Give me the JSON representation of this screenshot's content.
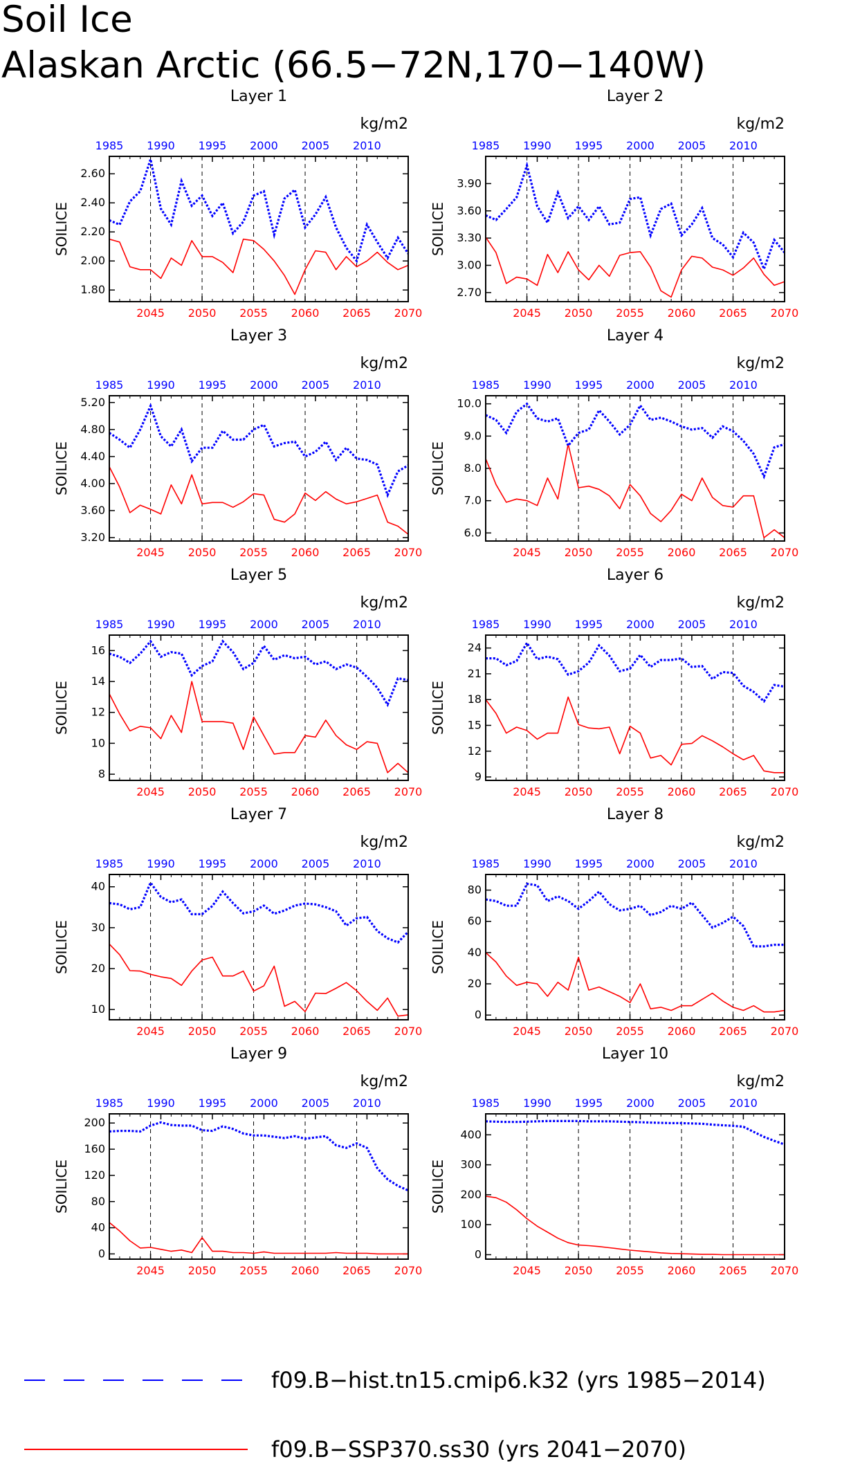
{
  "title_line1": "Soil Ice",
  "title_line2": "Alaskan Arctic (66.5−72N,170−140W)",
  "colors": {
    "hist": "#0000ff",
    "future": "#ff0000",
    "axis": "#000000"
  },
  "legend": [
    {
      "label": "f09.B−hist.tn15.cmip6.k32 (yrs 1985−2014)",
      "color": "#0000ff",
      "style": "dashed"
    },
    {
      "label": "f09.B−SSP370.ss30 (yrs 2041−2070)",
      "color": "#ff0000",
      "style": "solid"
    }
  ],
  "chart_data": [
    {
      "type": "line",
      "title": "Layer 1",
      "units": "kg/m2",
      "ylabel": "SOILICE",
      "top_ticks": [
        "1985",
        "1990",
        "1995",
        "2000",
        "2005",
        "2010"
      ],
      "bottom_ticks": [
        "2045",
        "2050",
        "2055",
        "2060",
        "2065",
        "2070"
      ],
      "ylim": [
        1.72,
        2.72
      ],
      "yticks": [
        1.8,
        2.0,
        2.2,
        2.4,
        2.6
      ],
      "ytick_labels": [
        "1.80",
        "2.00",
        "2.20",
        "2.40",
        "2.60"
      ],
      "series": [
        {
          "values": [
            2.28,
            2.25,
            2.41,
            2.48,
            2.7,
            2.36,
            2.25,
            2.55,
            2.38,
            2.45,
            2.31,
            2.4,
            2.19,
            2.27,
            2.45,
            2.48,
            2.18,
            2.43,
            2.49,
            2.23,
            2.32,
            2.44,
            2.23,
            2.09,
            2.0,
            2.25,
            2.13,
            2.02,
            2.16,
            2.05
          ]
        },
        {
          "values": [
            2.15,
            2.13,
            1.96,
            1.94,
            1.94,
            1.88,
            2.02,
            1.97,
            2.14,
            2.03,
            2.03,
            1.99,
            1.92,
            2.15,
            2.14,
            2.08,
            2.0,
            1.9,
            1.77,
            1.94,
            2.07,
            2.06,
            1.94,
            2.03,
            1.96,
            2.0,
            2.06,
            1.99,
            1.94,
            1.97
          ]
        }
      ]
    },
    {
      "type": "line",
      "title": "Layer 2",
      "units": "kg/m2",
      "ylabel": "SOILICE",
      "top_ticks": [
        "1985",
        "1990",
        "1995",
        "2000",
        "2005",
        "2010"
      ],
      "bottom_ticks": [
        "2045",
        "2050",
        "2055",
        "2060",
        "2065",
        "2070"
      ],
      "ylim": [
        2.6,
        4.2
      ],
      "yticks": [
        2.7,
        3.0,
        3.3,
        3.6,
        3.9
      ],
      "ytick_labels": [
        "2.70",
        "3.00",
        "3.30",
        "3.60",
        "3.90"
      ],
      "series": [
        {
          "values": [
            3.55,
            3.5,
            3.62,
            3.75,
            4.1,
            3.65,
            3.47,
            3.8,
            3.52,
            3.65,
            3.5,
            3.65,
            3.45,
            3.47,
            3.73,
            3.75,
            3.33,
            3.62,
            3.68,
            3.33,
            3.45,
            3.63,
            3.3,
            3.23,
            3.09,
            3.36,
            3.25,
            2.96,
            3.28,
            3.14
          ]
        },
        {
          "values": [
            3.31,
            3.14,
            2.8,
            2.87,
            2.85,
            2.78,
            3.12,
            2.92,
            3.15,
            2.95,
            2.84,
            3.0,
            2.88,
            3.11,
            3.14,
            3.15,
            2.98,
            2.72,
            2.65,
            2.95,
            3.1,
            3.08,
            2.98,
            2.95,
            2.89,
            2.97,
            3.08,
            2.9,
            2.78,
            2.82
          ]
        }
      ]
    },
    {
      "type": "line",
      "title": "Layer 3",
      "units": "kg/m2",
      "ylabel": "SOILICE",
      "top_ticks": [
        "1985",
        "1990",
        "1995",
        "2000",
        "2005",
        "2010"
      ],
      "bottom_ticks": [
        "2045",
        "2050",
        "2055",
        "2060",
        "2065",
        "2070"
      ],
      "ylim": [
        3.15,
        5.3
      ],
      "yticks": [
        3.2,
        3.6,
        4.0,
        4.4,
        4.8,
        5.2
      ],
      "ytick_labels": [
        "3.20",
        "3.60",
        "4.00",
        "4.40",
        "4.80",
        "5.20"
      ],
      "series": [
        {
          "values": [
            4.75,
            4.65,
            4.53,
            4.8,
            5.15,
            4.7,
            4.55,
            4.8,
            4.33,
            4.53,
            4.53,
            4.78,
            4.65,
            4.65,
            4.8,
            4.87,
            4.55,
            4.6,
            4.62,
            4.4,
            4.47,
            4.62,
            4.35,
            4.53,
            4.37,
            4.35,
            4.28,
            3.83,
            4.18,
            4.27
          ]
        },
        {
          "values": [
            4.25,
            3.95,
            3.57,
            3.68,
            3.62,
            3.55,
            3.98,
            3.7,
            4.13,
            3.7,
            3.72,
            3.72,
            3.65,
            3.73,
            3.85,
            3.83,
            3.47,
            3.43,
            3.55,
            3.86,
            3.75,
            3.88,
            3.77,
            3.7,
            3.73,
            3.78,
            3.83,
            3.43,
            3.37,
            3.25
          ]
        }
      ]
    },
    {
      "type": "line",
      "title": "Layer 4",
      "units": "kg/m2",
      "ylabel": "SOILICE",
      "top_ticks": [
        "1985",
        "1990",
        "1995",
        "2000",
        "2005",
        "2010"
      ],
      "bottom_ticks": [
        "2045",
        "2050",
        "2055",
        "2060",
        "2065",
        "2070"
      ],
      "ylim": [
        5.75,
        10.25
      ],
      "yticks": [
        6.0,
        7.0,
        8.0,
        9.0,
        10.0
      ],
      "ytick_labels": [
        "6.0",
        "7.0",
        "8.0",
        "9.0",
        "10.0"
      ],
      "series": [
        {
          "values": [
            9.65,
            9.5,
            9.1,
            9.75,
            10.0,
            9.55,
            9.45,
            9.55,
            8.7,
            9.1,
            9.2,
            9.8,
            9.45,
            9.05,
            9.35,
            9.95,
            9.5,
            9.57,
            9.45,
            9.3,
            9.2,
            9.25,
            8.95,
            9.3,
            9.15,
            8.85,
            8.45,
            7.75,
            8.65,
            8.75
          ]
        },
        {
          "values": [
            8.3,
            7.5,
            6.95,
            7.05,
            7.0,
            6.85,
            7.7,
            7.05,
            8.75,
            7.4,
            7.45,
            7.35,
            7.15,
            6.75,
            7.5,
            7.15,
            6.6,
            6.35,
            6.7,
            7.2,
            7.0,
            7.7,
            7.1,
            6.85,
            6.8,
            7.15,
            7.15,
            5.85,
            6.1,
            5.85
          ]
        }
      ]
    },
    {
      "type": "line",
      "title": "Layer 5",
      "units": "kg/m2",
      "ylabel": "SOILICE",
      "top_ticks": [
        "1985",
        "1990",
        "1995",
        "2000",
        "2005",
        "2010"
      ],
      "bottom_ticks": [
        "2045",
        "2050",
        "2055",
        "2060",
        "2065",
        "2070"
      ],
      "ylim": [
        7.6,
        17.0
      ],
      "yticks": [
        8,
        10,
        12,
        14,
        16
      ],
      "ytick_labels": [
        "8",
        "10",
        "12",
        "14",
        "16"
      ],
      "series": [
        {
          "values": [
            15.8,
            15.6,
            15.2,
            15.8,
            16.6,
            15.6,
            15.9,
            15.8,
            14.4,
            15.0,
            15.3,
            16.6,
            15.9,
            14.8,
            15.2,
            16.3,
            15.4,
            15.7,
            15.5,
            15.6,
            15.1,
            15.3,
            14.8,
            15.1,
            14.9,
            14.3,
            13.6,
            12.5,
            14.2,
            14.1
          ]
        },
        {
          "values": [
            13.2,
            11.9,
            10.8,
            11.1,
            11.0,
            10.3,
            11.8,
            10.7,
            14.0,
            11.4,
            11.4,
            11.4,
            11.3,
            9.6,
            11.7,
            10.5,
            9.3,
            9.4,
            9.4,
            10.5,
            10.4,
            11.5,
            10.5,
            9.9,
            9.6,
            10.1,
            10.0,
            8.1,
            8.7,
            8.1
          ]
        }
      ]
    },
    {
      "type": "line",
      "title": "Layer 6",
      "units": "kg/m2",
      "ylabel": "SOILICE",
      "top_ticks": [
        "1985",
        "1990",
        "1995",
        "2000",
        "2005",
        "2010"
      ],
      "bottom_ticks": [
        "2045",
        "2050",
        "2055",
        "2060",
        "2065",
        "2070"
      ],
      "ylim": [
        8.6,
        25.5
      ],
      "yticks": [
        9,
        12,
        15,
        18,
        21,
        24
      ],
      "ytick_labels": [
        "9",
        "12",
        "15",
        "18",
        "21",
        "24"
      ],
      "series": [
        {
          "values": [
            22.8,
            22.8,
            22.0,
            22.5,
            24.6,
            22.7,
            23.0,
            22.7,
            20.9,
            21.3,
            22.3,
            24.3,
            23.1,
            21.3,
            21.6,
            23.2,
            21.8,
            22.6,
            22.6,
            22.8,
            21.8,
            21.9,
            20.4,
            21.2,
            21.1,
            19.6,
            18.9,
            17.8,
            19.7,
            19.5
          ]
        },
        {
          "values": [
            18.0,
            16.4,
            14.1,
            14.8,
            14.4,
            13.4,
            14.1,
            14.1,
            18.3,
            15.1,
            14.7,
            14.6,
            14.8,
            11.7,
            14.9,
            14.1,
            11.2,
            11.5,
            10.4,
            12.8,
            12.9,
            13.8,
            13.2,
            12.5,
            11.7,
            11.0,
            11.5,
            9.7,
            9.5,
            9.5
          ]
        }
      ]
    },
    {
      "type": "line",
      "title": "Layer 7",
      "units": "kg/m2",
      "ylabel": "SOILICE",
      "top_ticks": [
        "1985",
        "1990",
        "1995",
        "2000",
        "2005",
        "2010"
      ],
      "bottom_ticks": [
        "2045",
        "2050",
        "2055",
        "2060",
        "2065",
        "2070"
      ],
      "ylim": [
        7.5,
        43.0
      ],
      "yticks": [
        10,
        20,
        30,
        40
      ],
      "ytick_labels": [
        "10",
        "20",
        "30",
        "40"
      ],
      "series": [
        {
          "values": [
            36.0,
            35.7,
            34.5,
            35.0,
            41.0,
            37.5,
            36.2,
            36.9,
            33.3,
            33.3,
            35.3,
            38.8,
            36.0,
            33.5,
            34.0,
            35.4,
            33.4,
            34.2,
            35.4,
            35.9,
            35.7,
            35.0,
            34.0,
            30.5,
            32.3,
            32.6,
            29.2,
            27.4,
            26.4,
            29.0
          ]
        },
        {
          "values": [
            26.0,
            23.4,
            19.5,
            19.4,
            18.6,
            18.0,
            17.6,
            15.9,
            19.4,
            22.1,
            22.8,
            18.2,
            18.2,
            19.4,
            14.5,
            15.8,
            20.6,
            10.8,
            12.0,
            9.5,
            14.0,
            13.9,
            15.2,
            16.6,
            14.6,
            12.0,
            9.8,
            12.8,
            8.4,
            8.7
          ]
        }
      ]
    },
    {
      "type": "line",
      "title": "Layer 8",
      "units": "kg/m2",
      "ylabel": "SOILICE",
      "top_ticks": [
        "1985",
        "1990",
        "1995",
        "2000",
        "2005",
        "2010"
      ],
      "bottom_ticks": [
        "2045",
        "2050",
        "2055",
        "2060",
        "2065",
        "2070"
      ],
      "ylim": [
        -3,
        90
      ],
      "yticks": [
        0,
        20,
        40,
        60,
        80
      ],
      "ytick_labels": [
        "0",
        "20",
        "40",
        "60",
        "80"
      ],
      "series": [
        {
          "values": [
            74,
            73,
            70,
            70,
            84,
            83,
            73,
            76,
            73,
            68,
            73,
            79,
            71,
            67,
            68,
            70,
            64,
            66,
            70,
            68,
            72,
            64,
            56,
            59,
            63,
            57,
            44,
            44,
            45,
            45
          ]
        },
        {
          "values": [
            40,
            34,
            25,
            19,
            21,
            20,
            12,
            21,
            16,
            37,
            16,
            18,
            15,
            12,
            8,
            20,
            4,
            5,
            3,
            6,
            6,
            10,
            14,
            9,
            5,
            3,
            6,
            2,
            2,
            3
          ]
        }
      ]
    },
    {
      "type": "line",
      "title": "Layer 9",
      "units": "kg/m2",
      "ylabel": "SOILICE",
      "top_ticks": [
        "1985",
        "1990",
        "1995",
        "2000",
        "2005",
        "2010"
      ],
      "bottom_ticks": [
        "2045",
        "2050",
        "2055",
        "2060",
        "2065",
        "2070"
      ],
      "ylim": [
        -8,
        214
      ],
      "yticks": [
        0,
        40,
        80,
        120,
        160,
        200
      ],
      "ytick_labels": [
        "0",
        "40",
        "80",
        "120",
        "160",
        "200"
      ],
      "series": [
        {
          "values": [
            187,
            188,
            188,
            187,
            196,
            201,
            197,
            196,
            196,
            189,
            188,
            195,
            191,
            184,
            181,
            181,
            179,
            177,
            180,
            176,
            178,
            180,
            166,
            162,
            169,
            162,
            131,
            114,
            104,
            97
          ]
        },
        {
          "values": [
            48,
            35,
            20,
            9,
            10,
            7,
            4,
            6,
            2,
            25,
            4,
            4,
            2,
            2,
            1,
            3,
            1,
            1,
            1,
            1,
            1,
            1,
            2,
            1,
            1,
            1,
            0,
            0,
            0,
            0
          ]
        }
      ]
    },
    {
      "type": "line",
      "title": "Layer 10",
      "units": "kg/m2",
      "ylabel": "SOILICE",
      "top_ticks": [
        "1985",
        "1990",
        "1995",
        "2000",
        "2005",
        "2010"
      ],
      "bottom_ticks": [
        "2045",
        "2050",
        "2055",
        "2060",
        "2065",
        "2070"
      ],
      "ylim": [
        -15,
        470
      ],
      "yticks": [
        0,
        100,
        200,
        300,
        400
      ],
      "ytick_labels": [
        "0",
        "100",
        "200",
        "300",
        "400"
      ],
      "series": [
        {
          "values": [
            445,
            444,
            443,
            443,
            444,
            445,
            446,
            446,
            446,
            446,
            445,
            445,
            445,
            444,
            443,
            442,
            441,
            440,
            439,
            439,
            438,
            437,
            434,
            432,
            430,
            427,
            410,
            393,
            380,
            368
          ]
        },
        {
          "values": [
            195,
            190,
            175,
            150,
            120,
            95,
            75,
            55,
            40,
            32,
            30,
            27,
            23,
            19,
            15,
            12,
            9,
            6,
            4,
            3,
            2,
            1,
            1,
            0,
            0,
            0,
            0,
            0,
            0,
            0
          ]
        }
      ]
    }
  ]
}
